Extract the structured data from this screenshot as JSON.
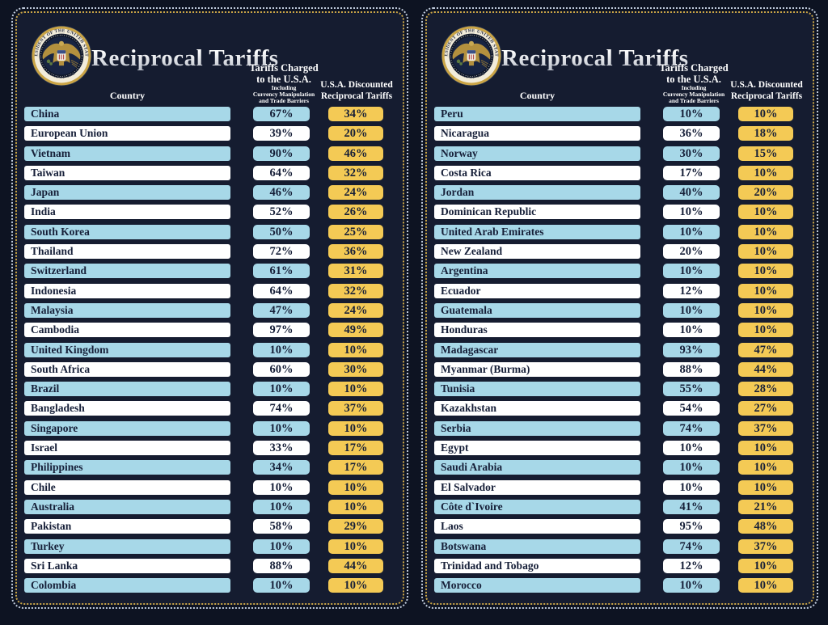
{
  "colors": {
    "background": "#0d1322",
    "panel_background": "#151c30",
    "row_blue": "#a7d8e8",
    "row_white": "#ffffff",
    "value_yellow": "#f4ca55",
    "text_dark": "#161f38",
    "border_outer_dotted": "#bfcadb",
    "border_inner_dotted": "#c9a446"
  },
  "header": {
    "title": "Reciprocal Tariffs",
    "country_label": "Country",
    "charged_line1": "Tariffs Charged",
    "charged_line2": "to the U.S.A.",
    "charged_sub1": "Including",
    "charged_sub2": "Currency Manipulation",
    "charged_sub3": "and Trade Barriers",
    "discounted_line1": "U.S.A. Discounted",
    "discounted_line2": "Reciprocal Tariffs",
    "seal_top_text": "PRESIDENT OF THE UNITED STATES",
    "seal_bottom_text": "• SEAL OF THE •"
  },
  "chart_data": {
    "type": "table",
    "title": "Reciprocal Tariffs",
    "columns": [
      "Country",
      "Tariffs Charged to the U.S.A. Including Currency Manipulation and Trade Barriers",
      "U.S.A. Discounted Reciprocal Tariffs"
    ],
    "panels": [
      {
        "rows": [
          {
            "country": "China",
            "charged": "67%",
            "discounted": "34%"
          },
          {
            "country": "European Union",
            "charged": "39%",
            "discounted": "20%"
          },
          {
            "country": "Vietnam",
            "charged": "90%",
            "discounted": "46%"
          },
          {
            "country": "Taiwan",
            "charged": "64%",
            "discounted": "32%"
          },
          {
            "country": "Japan",
            "charged": "46%",
            "discounted": "24%"
          },
          {
            "country": "India",
            "charged": "52%",
            "discounted": "26%"
          },
          {
            "country": "South Korea",
            "charged": "50%",
            "discounted": "25%"
          },
          {
            "country": "Thailand",
            "charged": "72%",
            "discounted": "36%"
          },
          {
            "country": "Switzerland",
            "charged": "61%",
            "discounted": "31%"
          },
          {
            "country": "Indonesia",
            "charged": "64%",
            "discounted": "32%"
          },
          {
            "country": "Malaysia",
            "charged": "47%",
            "discounted": "24%"
          },
          {
            "country": "Cambodia",
            "charged": "97%",
            "discounted": "49%"
          },
          {
            "country": "United Kingdom",
            "charged": "10%",
            "discounted": "10%"
          },
          {
            "country": "South Africa",
            "charged": "60%",
            "discounted": "30%"
          },
          {
            "country": "Brazil",
            "charged": "10%",
            "discounted": "10%"
          },
          {
            "country": "Bangladesh",
            "charged": "74%",
            "discounted": "37%"
          },
          {
            "country": "Singapore",
            "charged": "10%",
            "discounted": "10%"
          },
          {
            "country": "Israel",
            "charged": "33%",
            "discounted": "17%"
          },
          {
            "country": "Philippines",
            "charged": "34%",
            "discounted": "17%"
          },
          {
            "country": "Chile",
            "charged": "10%",
            "discounted": "10%"
          },
          {
            "country": "Australia",
            "charged": "10%",
            "discounted": "10%"
          },
          {
            "country": "Pakistan",
            "charged": "58%",
            "discounted": "29%"
          },
          {
            "country": "Turkey",
            "charged": "10%",
            "discounted": "10%"
          },
          {
            "country": "Sri Lanka",
            "charged": "88%",
            "discounted": "44%"
          },
          {
            "country": "Colombia",
            "charged": "10%",
            "discounted": "10%"
          }
        ]
      },
      {
        "rows": [
          {
            "country": "Peru",
            "charged": "10%",
            "discounted": "10%"
          },
          {
            "country": "Nicaragua",
            "charged": "36%",
            "discounted": "18%"
          },
          {
            "country": "Norway",
            "charged": "30%",
            "discounted": "15%"
          },
          {
            "country": "Costa Rica",
            "charged": "17%",
            "discounted": "10%"
          },
          {
            "country": "Jordan",
            "charged": "40%",
            "discounted": "20%"
          },
          {
            "country": "Dominican Republic",
            "charged": "10%",
            "discounted": "10%"
          },
          {
            "country": "United Arab Emirates",
            "charged": "10%",
            "discounted": "10%"
          },
          {
            "country": "New Zealand",
            "charged": "20%",
            "discounted": "10%"
          },
          {
            "country": "Argentina",
            "charged": "10%",
            "discounted": "10%"
          },
          {
            "country": "Ecuador",
            "charged": "12%",
            "discounted": "10%"
          },
          {
            "country": "Guatemala",
            "charged": "10%",
            "discounted": "10%"
          },
          {
            "country": "Honduras",
            "charged": "10%",
            "discounted": "10%"
          },
          {
            "country": "Madagascar",
            "charged": "93%",
            "discounted": "47%"
          },
          {
            "country": "Myanmar (Burma)",
            "charged": "88%",
            "discounted": "44%"
          },
          {
            "country": "Tunisia",
            "charged": "55%",
            "discounted": "28%"
          },
          {
            "country": "Kazakhstan",
            "charged": "54%",
            "discounted": "27%"
          },
          {
            "country": "Serbia",
            "charged": "74%",
            "discounted": "37%"
          },
          {
            "country": "Egypt",
            "charged": "10%",
            "discounted": "10%"
          },
          {
            "country": "Saudi Arabia",
            "charged": "10%",
            "discounted": "10%"
          },
          {
            "country": "El Salvador",
            "charged": "10%",
            "discounted": "10%"
          },
          {
            "country": "Côte d`Ivoire",
            "charged": "41%",
            "discounted": "21%"
          },
          {
            "country": "Laos",
            "charged": "95%",
            "discounted": "48%"
          },
          {
            "country": "Botswana",
            "charged": "74%",
            "discounted": "37%"
          },
          {
            "country": "Trinidad and Tobago",
            "charged": "12%",
            "discounted": "10%"
          },
          {
            "country": "Morocco",
            "charged": "10%",
            "discounted": "10%"
          }
        ]
      }
    ]
  }
}
